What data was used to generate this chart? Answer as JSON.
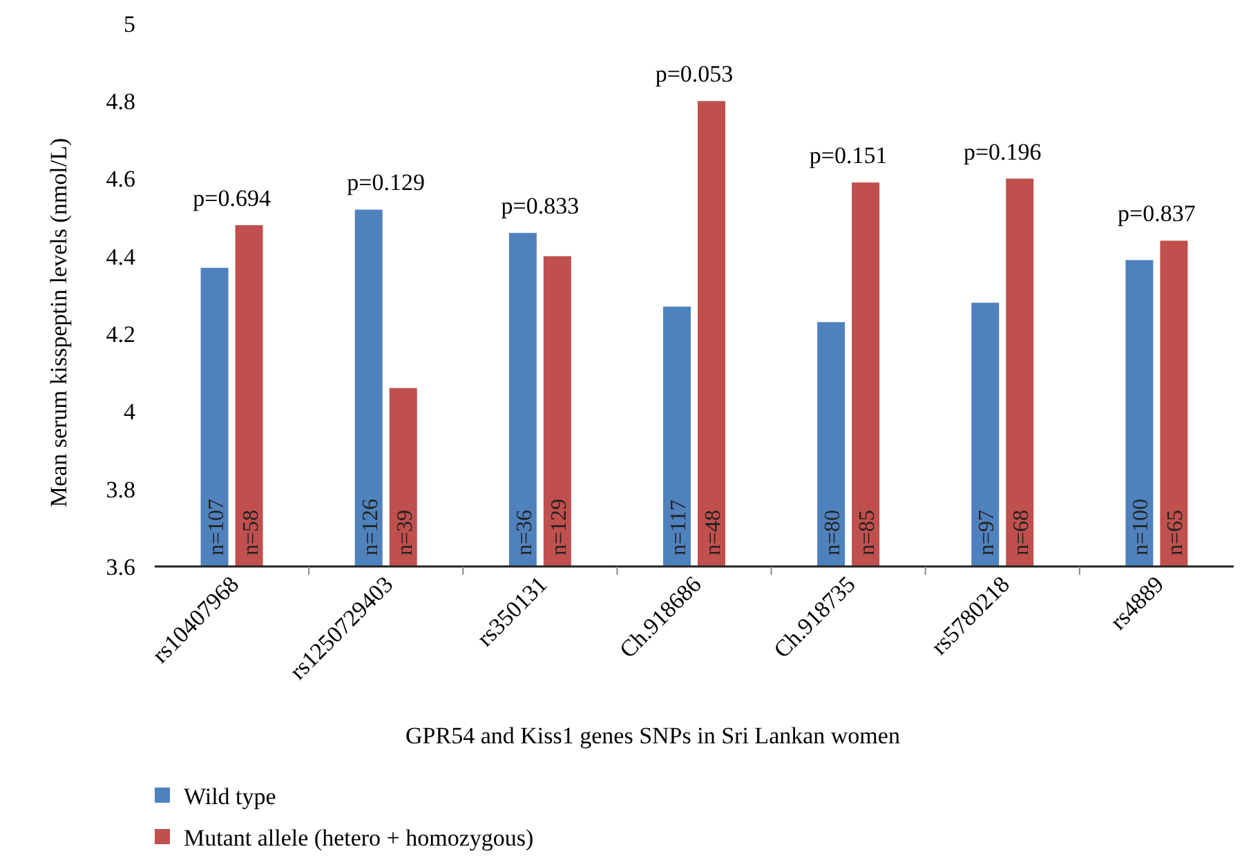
{
  "chart_data": {
    "type": "bar",
    "xlabel": "GPR54 and Kiss1 genes SNPs in Sri Lankan women",
    "ylabel": "Mean serum kisspeptin levels (nmol/L)",
    "categories": [
      "rs10407968",
      "rs1250729403",
      "rs350131",
      "Ch.918686",
      "Ch.918735",
      "rs5780218",
      "rs4889"
    ],
    "series": [
      {
        "name": "Wild type",
        "color": "#4f81bd",
        "values": [
          4.37,
          4.52,
          4.46,
          4.27,
          4.23,
          4.28,
          4.39
        ]
      },
      {
        "name": "Mutant allele (hetero + homozygous)",
        "color": "#c0504d",
        "values": [
          4.48,
          4.06,
          4.4,
          4.8,
          4.59,
          4.6,
          4.44
        ]
      }
    ],
    "ylim": [
      3.6,
      5
    ],
    "yticks": [
      3.6,
      3.8,
      {
        "value": 4,
        "label": "4"
      },
      4.2,
      4.4,
      4.6,
      4.8,
      5
    ],
    "grid": false,
    "legend": "bottom left",
    "annotations": [
      "p=0.694",
      "p=0.129",
      "p=0.833",
      "p=0.053",
      "p=0.151",
      "p=0.196",
      "p=0.837",
      "n=107",
      "n=126",
      "n=36",
      "n=117",
      "n=80",
      "n=97",
      "n=100",
      "n=58",
      "n=39",
      "n=129",
      "n=48",
      "n=85",
      "n=68",
      "n=65"
    ]
  }
}
